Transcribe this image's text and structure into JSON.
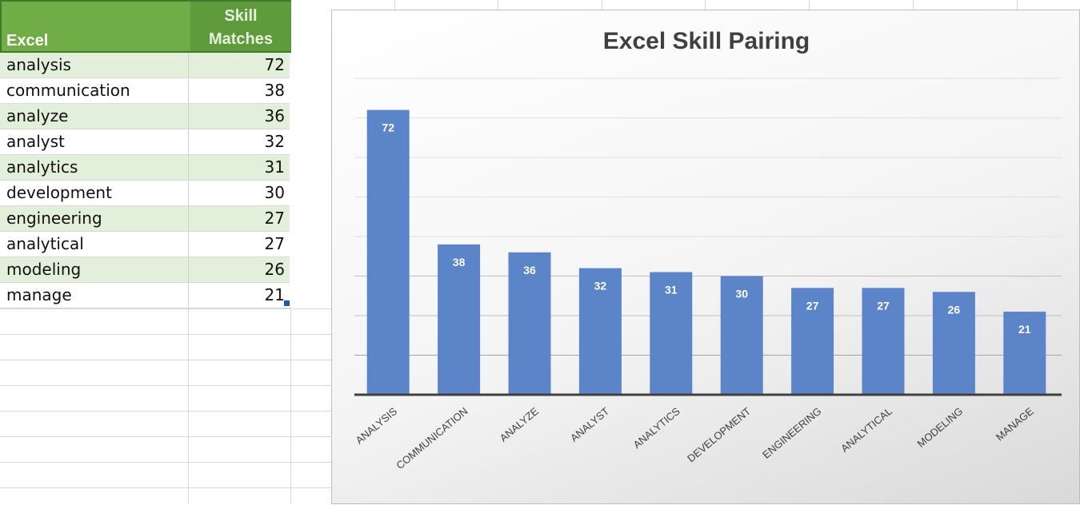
{
  "table": {
    "header_col1": "Excel",
    "header_col2_line1": "Skill",
    "header_col2_line2": "Matches",
    "rows": [
      {
        "name": "analysis",
        "value": 72
      },
      {
        "name": "communication",
        "value": 38
      },
      {
        "name": "analyze",
        "value": 36
      },
      {
        "name": "analyst",
        "value": 32
      },
      {
        "name": "analytics",
        "value": 31
      },
      {
        "name": "development",
        "value": 30
      },
      {
        "name": "engineering",
        "value": 27
      },
      {
        "name": "analytical",
        "value": 27
      },
      {
        "name": "modeling",
        "value": 26
      },
      {
        "name": "manage",
        "value": 21
      }
    ]
  },
  "chart_data": {
    "type": "bar",
    "title": "Excel Skill Pairing",
    "categories": [
      "ANALYSIS",
      "COMMUNICATION",
      "ANALYZE",
      "ANALYST",
      "ANALYTICS",
      "DEVELOPMENT",
      "ENGINEERING",
      "ANALYTICAL",
      "MODELING",
      "MANAGE"
    ],
    "values": [
      72,
      38,
      36,
      32,
      31,
      30,
      27,
      27,
      26,
      21
    ],
    "xlabel": "",
    "ylabel": "",
    "ylim": [
      0,
      80
    ],
    "grid": true,
    "legend": "none",
    "bar_color": "#5b84c9",
    "data_label_color": "#ffffff"
  },
  "colors": {
    "header_green": "#70ad47",
    "band_green": "#e2efda"
  }
}
